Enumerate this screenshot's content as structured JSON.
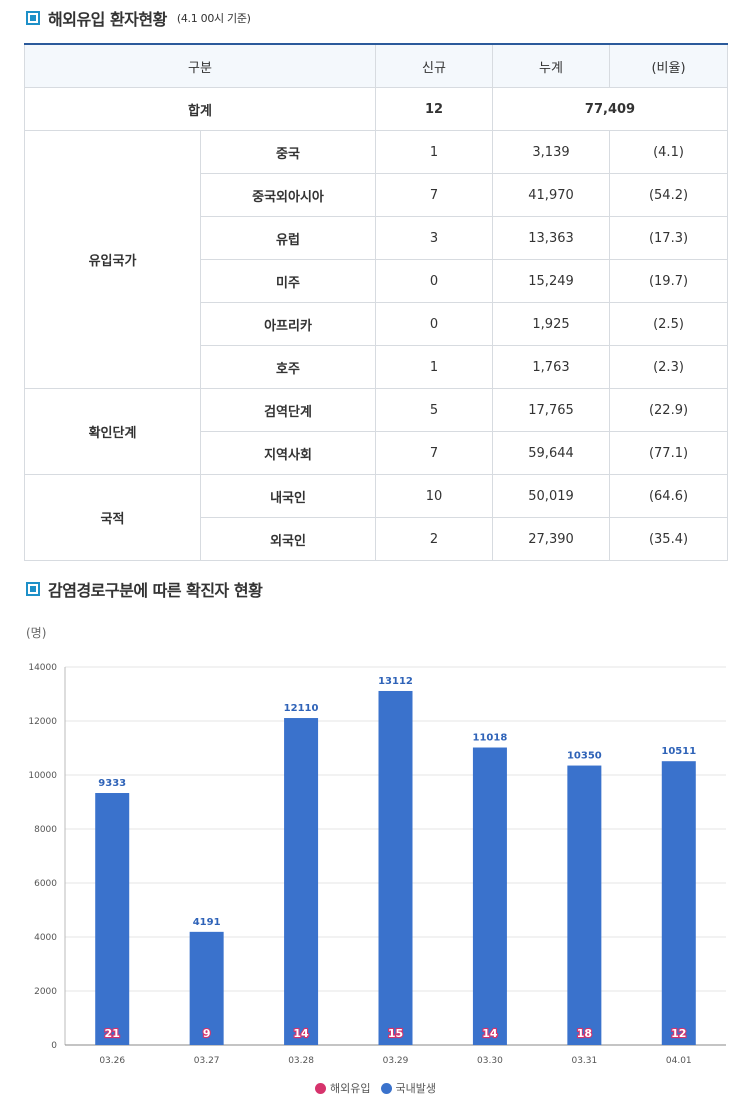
{
  "section1": {
    "title": "해외유입 환자현황",
    "subtitle": "(4.1 00시 기준)"
  },
  "table": {
    "headers": [
      "구분",
      "신규",
      "누계",
      "(비율)"
    ],
    "total": {
      "label": "합계",
      "new": "12",
      "cumulative": "77,409"
    },
    "groups": [
      {
        "name": "유입국가",
        "rows": [
          {
            "label": "중국",
            "new": "1",
            "cum": "3,139",
            "ratio": "(4.1)"
          },
          {
            "label": "중국외아시아",
            "new": "7",
            "cum": "41,970",
            "ratio": "(54.2)"
          },
          {
            "label": "유럽",
            "new": "3",
            "cum": "13,363",
            "ratio": "(17.3)"
          },
          {
            "label": "미주",
            "new": "0",
            "cum": "15,249",
            "ratio": "(19.7)"
          },
          {
            "label": "아프리카",
            "new": "0",
            "cum": "1,925",
            "ratio": "(2.5)"
          },
          {
            "label": "호주",
            "new": "1",
            "cum": "1,763",
            "ratio": "(2.3)"
          }
        ]
      },
      {
        "name": "확인단계",
        "rows": [
          {
            "label": "검역단계",
            "new": "5",
            "cum": "17,765",
            "ratio": "(22.9)"
          },
          {
            "label": "지역사회",
            "new": "7",
            "cum": "59,644",
            "ratio": "(77.1)"
          }
        ]
      },
      {
        "name": "국적",
        "rows": [
          {
            "label": "내국인",
            "new": "10",
            "cum": "50,019",
            "ratio": "(64.6)"
          },
          {
            "label": "외국인",
            "new": "2",
            "cum": "27,390",
            "ratio": "(35.4)"
          }
        ]
      }
    ]
  },
  "section2": {
    "title": "감염경로구분에 따른 확진자 현황",
    "unit": "(명)"
  },
  "chart_data": {
    "type": "bar",
    "categories": [
      "03.26",
      "03.27",
      "03.28",
      "03.29",
      "03.30",
      "03.31",
      "04.01"
    ],
    "series": [
      {
        "name": "국내발생",
        "values": [
          9333,
          4191,
          12110,
          13112,
          11018,
          10350,
          10511
        ],
        "color": "#3a72cc"
      },
      {
        "name": "해외유입",
        "values": [
          21,
          9,
          14,
          15,
          14,
          18,
          12
        ],
        "color": "#d6336c"
      }
    ],
    "yticks": [
      0,
      2000,
      4000,
      6000,
      8000,
      10000,
      12000,
      14000
    ],
    "ylim": [
      0,
      14000
    ],
    "legend": [
      "해외유입",
      "국내발생"
    ],
    "legend_position": "bottom"
  }
}
